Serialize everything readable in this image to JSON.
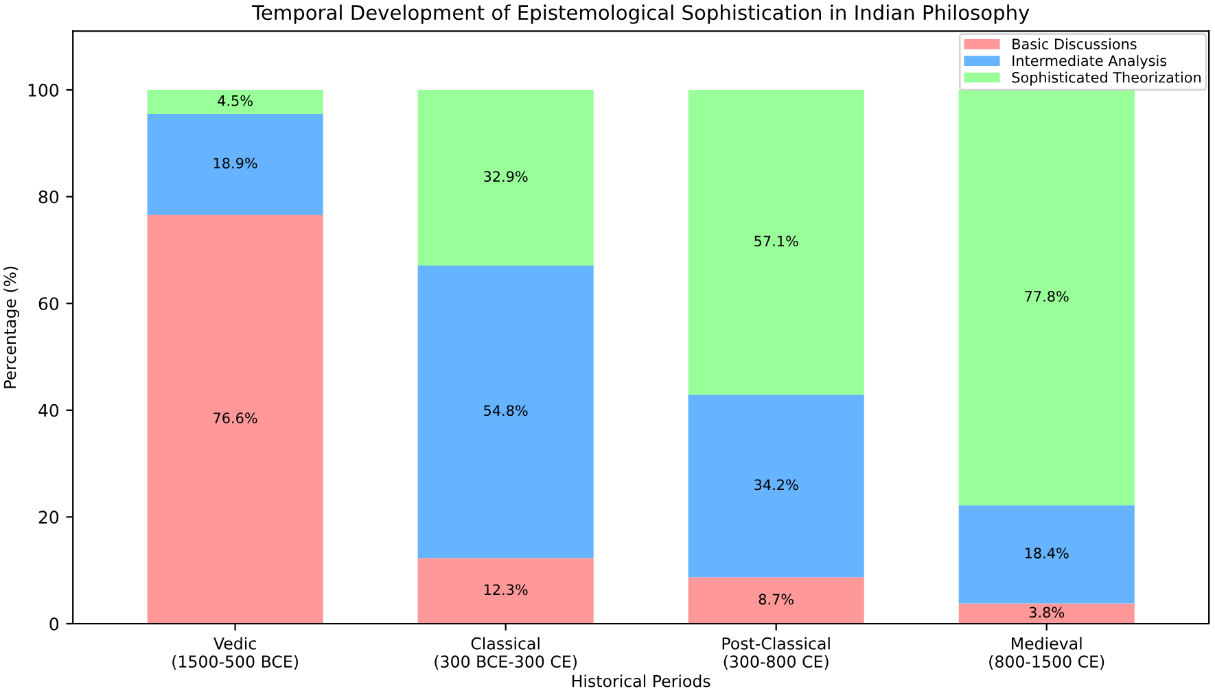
{
  "chart_data": {
    "type": "bar",
    "title": "Temporal Development of Epistemological Sophistication in Indian Philosophy",
    "xlabel": "Historical Periods",
    "ylabel": "Percentage (%)",
    "categories": [
      "Vedic\n(1500-500 BCE)",
      "Classical\n(300 BCE-300 CE)",
      "Post-Classical\n(300-800 CE)",
      "Medieval\n(800-1500 CE)"
    ],
    "stacked": true,
    "series": [
      {
        "name": "Basic Discussions",
        "color": "#ff9999",
        "values": [
          76.6,
          12.3,
          8.7,
          3.8
        ],
        "value_labels": [
          "76.6%",
          "12.3%",
          "8.7%",
          "3.8%"
        ]
      },
      {
        "name": "Intermediate Analysis",
        "color": "#66b3ff",
        "values": [
          18.9,
          54.8,
          34.2,
          18.4
        ],
        "value_labels": [
          "18.9%",
          "54.8%",
          "34.2%",
          "18.4%"
        ]
      },
      {
        "name": "Sophisticated Theorization",
        "color": "#99ff99",
        "values": [
          4.5,
          32.9,
          57.1,
          77.8
        ],
        "value_labels": [
          "4.5%",
          "32.9%",
          "57.1%",
          "77.8%"
        ]
      }
    ],
    "ylim": [
      0,
      111
    ],
    "yticks": [
      0,
      20,
      40,
      60,
      80,
      100
    ],
    "grid": false,
    "legend": "top right"
  }
}
